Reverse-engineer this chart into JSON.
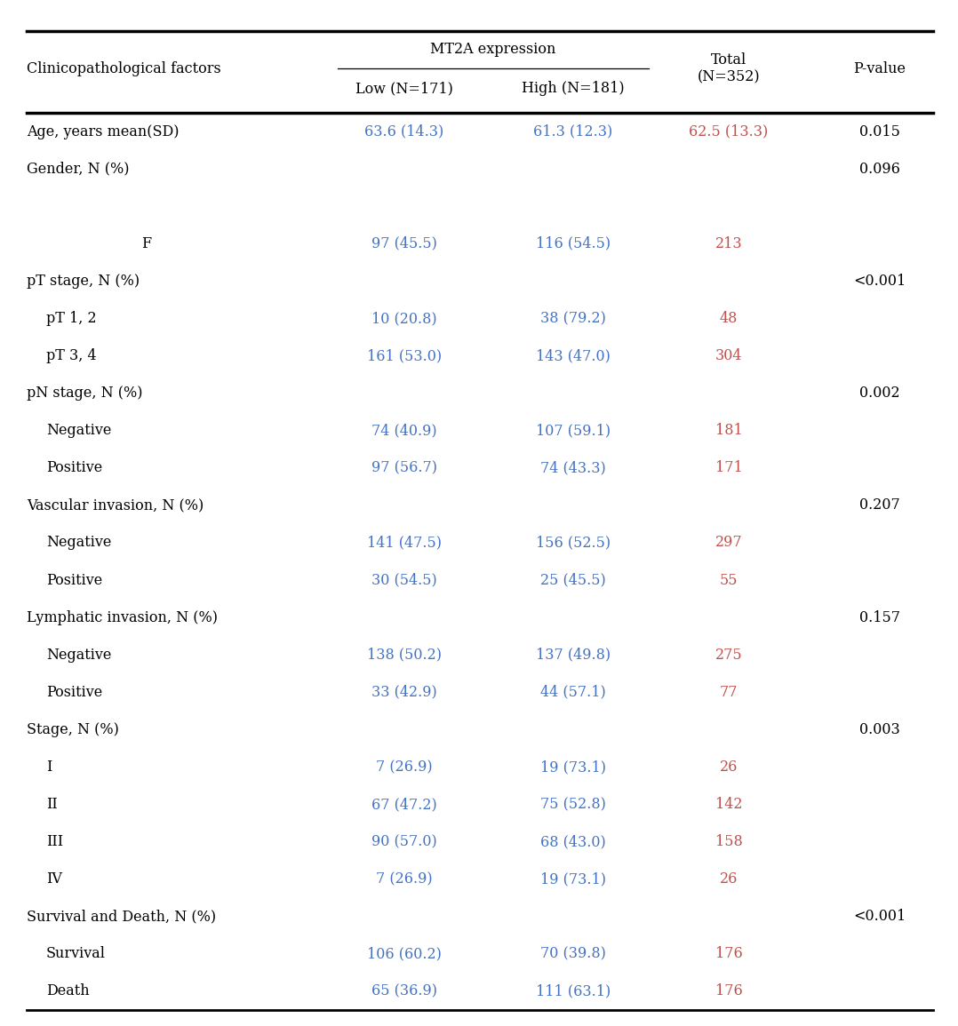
{
  "title_col1": "Clinicopathological factors",
  "title_mt2a": "MT2A expression",
  "title_low": "Low (N=171)",
  "title_high": "High (N=181)",
  "title_total": "Total\n(N=352)",
  "title_pvalue": "P-value",
  "bg_color": "#ffffff",
  "black": "#000000",
  "blue": "#4472C4",
  "red": "#C0504D",
  "font_size": 11.5,
  "rows": [
    {
      "label": "Age, years mean(SD)",
      "indent": 0,
      "low": "63.6 (14.3)",
      "high": "61.3 (12.3)",
      "total": "62.5 (13.3)",
      "pvalue": "0.015"
    },
    {
      "label": "Gender, N (%)",
      "indent": 0,
      "low": "",
      "high": "",
      "total": "",
      "pvalue": "0.096"
    },
    {
      "label": "",
      "indent": 0,
      "low": "",
      "high": "",
      "total": "",
      "pvalue": ""
    },
    {
      "label": "F",
      "indent": 2,
      "low": "97 (45.5)",
      "high": "116 (54.5)",
      "total": "213",
      "pvalue": ""
    },
    {
      "label": "pT stage, N (%)",
      "indent": 0,
      "low": "",
      "high": "",
      "total": "",
      "pvalue": "<0.001"
    },
    {
      "label": "pT 1, 2",
      "indent": 1,
      "low": "10 (20.8)",
      "high": "38 (79.2)",
      "total": "48",
      "pvalue": ""
    },
    {
      "label": "pT 3, 4",
      "indent": 1,
      "low": "161 (53.0)",
      "high": "143 (47.0)",
      "total": "304",
      "pvalue": ""
    },
    {
      "label": "pN stage, N (%)",
      "indent": 0,
      "low": "",
      "high": "",
      "total": "",
      "pvalue": "0.002"
    },
    {
      "label": "Negative",
      "indent": 1,
      "low": "74 (40.9)",
      "high": "107 (59.1)",
      "total": "181",
      "pvalue": ""
    },
    {
      "label": "Positive",
      "indent": 1,
      "low": "97 (56.7)",
      "high": "74 (43.3)",
      "total": "171",
      "pvalue": ""
    },
    {
      "label": "Vascular invasion, N (%)",
      "indent": 0,
      "low": "",
      "high": "",
      "total": "",
      "pvalue": "0.207"
    },
    {
      "label": "Negative",
      "indent": 1,
      "low": "141 (47.5)",
      "high": "156 (52.5)",
      "total": "297",
      "pvalue": ""
    },
    {
      "label": "Positive",
      "indent": 1,
      "low": "30 (54.5)",
      "high": "25 (45.5)",
      "total": "55",
      "pvalue": ""
    },
    {
      "label": "Lymphatic invasion, N (%)",
      "indent": 0,
      "low": "",
      "high": "",
      "total": "",
      "pvalue": "0.157"
    },
    {
      "label": "Negative",
      "indent": 1,
      "low": "138 (50.2)",
      "high": "137 (49.8)",
      "total": "275",
      "pvalue": ""
    },
    {
      "label": "Positive",
      "indent": 1,
      "low": "33 (42.9)",
      "high": "44 (57.1)",
      "total": "77",
      "pvalue": ""
    },
    {
      "label": "Stage, N (%)",
      "indent": 0,
      "low": "",
      "high": "",
      "total": "",
      "pvalue": "0.003"
    },
    {
      "label": "I",
      "indent": 1,
      "low": "7 (26.9)",
      "high": "19 (73.1)",
      "total": "26",
      "pvalue": ""
    },
    {
      "label": "II",
      "indent": 1,
      "low": "67 (47.2)",
      "high": "75 (52.8)",
      "total": "142",
      "pvalue": ""
    },
    {
      "label": "III",
      "indent": 1,
      "low": "90 (57.0)",
      "high": "68 (43.0)",
      "total": "158",
      "pvalue": ""
    },
    {
      "label": "IV",
      "indent": 1,
      "low": "7 (26.9)",
      "high": "19 (73.1)",
      "total": "26",
      "pvalue": ""
    },
    {
      "label": "Survival and Death, N (%)",
      "indent": 0,
      "low": "",
      "high": "",
      "total": "",
      "pvalue": "<0.001"
    },
    {
      "label": "Survival",
      "indent": 1,
      "low": "106 (60.2)",
      "high": "70 (39.8)",
      "total": "176",
      "pvalue": ""
    },
    {
      "label": "Death",
      "indent": 1,
      "low": "65 (36.9)",
      "high": "111 (63.1)",
      "total": "176",
      "pvalue": ""
    }
  ]
}
